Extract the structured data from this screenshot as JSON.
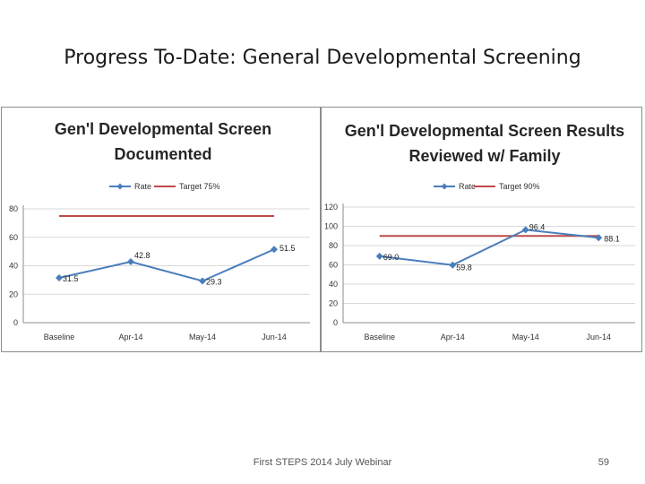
{
  "slide": {
    "title": "Progress To-Date: General Developmental Screening",
    "footer": "First STEPS 2014 July Webinar",
    "page_number": "59"
  },
  "colors": {
    "rate_series": "#4a7ebb",
    "target_series": "#be4b48",
    "gridline": "#d9d9d9",
    "axis": "#8c8c8c"
  },
  "chart_data": [
    {
      "type": "line",
      "title_lines": [
        "Gen'l Developmental Screen",
        "Documented"
      ],
      "categories": [
        "Baseline",
        "Apr-14",
        "May-14",
        "Jun-14"
      ],
      "series": [
        {
          "name": "Rate",
          "values": [
            31.5,
            42.8,
            29.3,
            51.5
          ],
          "labels": [
            "31.5",
            "42.8",
            "29.3",
            "51.5"
          ],
          "marker": "diamond-icon"
        },
        {
          "name": "Target 75%",
          "values": [
            75,
            75,
            75,
            75
          ],
          "marker": "none"
        }
      ],
      "ylim": [
        0,
        80
      ],
      "yticks": [
        0,
        20,
        40,
        60,
        80
      ],
      "legend_position": "top",
      "grid": true
    },
    {
      "type": "line",
      "title_lines": [
        "Gen'l Developmental Screen Results",
        "Reviewed w/ Family"
      ],
      "categories": [
        "Baseline",
        "Apr-14",
        "May-14",
        "Jun-14"
      ],
      "series": [
        {
          "name": "Rate",
          "values": [
            69.0,
            59.8,
            96.4,
            88.1
          ],
          "labels": [
            "69.0",
            "59.8",
            "96.4",
            "88.1"
          ],
          "marker": "diamond-icon"
        },
        {
          "name": "Target 90%",
          "values": [
            90,
            90,
            90,
            90
          ],
          "marker": "none"
        }
      ],
      "ylim": [
        0,
        120
      ],
      "yticks": [
        0,
        20,
        40,
        60,
        80,
        100,
        120
      ],
      "legend_position": "top",
      "grid": true
    }
  ]
}
